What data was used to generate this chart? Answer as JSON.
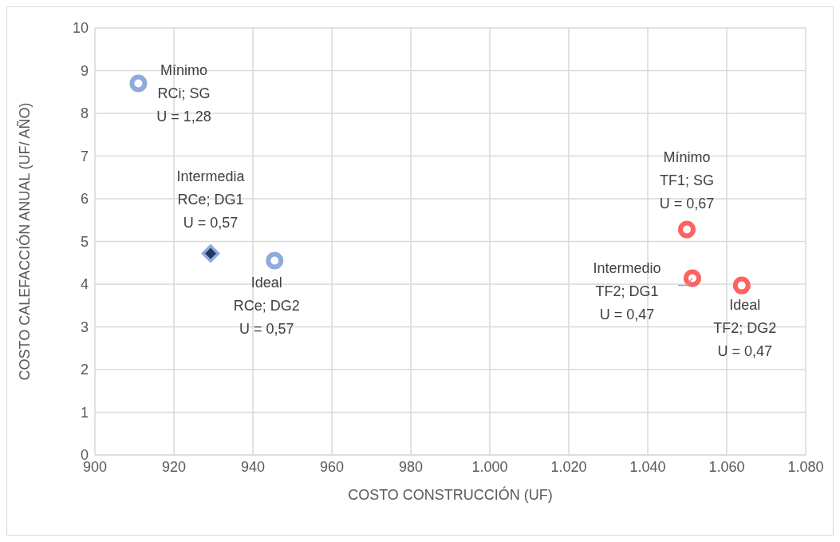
{
  "chart_data": {
    "type": "scatter",
    "xlabel": "COSTO CONSTRUCCIÓN (UF)",
    "ylabel": "COSTO CALEFACCIÓN ANUAL (UF/ AÑO)",
    "series": [
      {
        "color": "#8faadc",
        "marker": "circle",
        "x": [
          911,
          945.5
        ],
        "values": [
          8.7,
          4.55
        ]
      },
      {
        "color": "#1f3864",
        "marker": "diamond",
        "x": [
          929.3
        ],
        "values": [
          4.72
        ]
      },
      {
        "color": "#ff6161",
        "marker": "circle",
        "x": [
          1049.9,
          1051.3,
          1063.8
        ],
        "values": [
          5.28,
          4.14,
          3.97
        ]
      }
    ],
    "xlim": [
      900,
      1080
    ],
    "xticks": [
      900,
      920,
      940,
      960,
      980,
      {
        "value": 1000,
        "label": "1.000"
      },
      {
        "value": 1020,
        "label": "1.020"
      },
      {
        "value": 1040,
        "label": "1.040"
      },
      {
        "value": 1060,
        "label": "1.060"
      },
      {
        "value": 1080,
        "label": "1.080"
      }
    ],
    "ylim": [
      0,
      10
    ],
    "yticks": [
      0,
      1,
      2,
      3,
      4,
      5,
      6,
      7,
      8,
      9,
      10
    ],
    "grid": true,
    "legend": false,
    "annotations": [
      {
        "text": "Mínimo\nRCi; SG\nU = 1,28",
        "x": 911,
        "y": 8.7
      },
      {
        "text": "Intermedia\nRCe; DG1\nU = 0,57",
        "x": 929.3,
        "y": 4.72
      },
      {
        "text": "Ideal\nRCe; DG2\nU = 0,57",
        "x": 945.5,
        "y": 4.55
      },
      {
        "text": "Mínimo\nTF1; SG\nU = 0,67",
        "x": 1049.9,
        "y": 5.28
      },
      {
        "text": "Intermedio\nTF2; DG1\nU = 0,47",
        "x": 1051.3,
        "y": 4.14
      },
      {
        "text": "Ideal\nTF2; DG2\nU = 0,47",
        "x": 1063.8,
        "y": 3.97
      }
    ]
  }
}
